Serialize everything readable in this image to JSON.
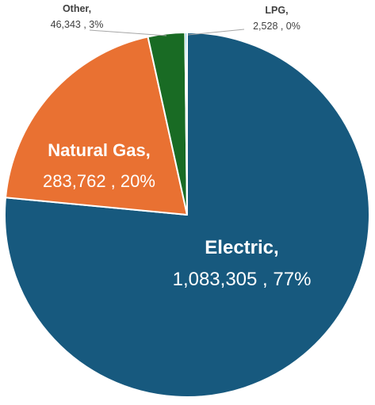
{
  "chart_data": {
    "type": "pie",
    "title": "",
    "slices": [
      {
        "name": "Electric",
        "value": 1083305,
        "value_text": "1,083,305",
        "percent_text": "77%",
        "color": "#17597e"
      },
      {
        "name": "Natural Gas",
        "value": 283762,
        "value_text": "283,762",
        "percent_text": "20%",
        "color": "#e97132"
      },
      {
        "name": "Other",
        "value": 46343,
        "value_text": "46,343",
        "percent_text": "3%",
        "color": "#196b24"
      },
      {
        "name": "LPG",
        "value": 2528,
        "value_text": "2,528",
        "percent_text": "0%",
        "color": "#0f9ed5"
      }
    ],
    "legend": "none",
    "start_angle_deg": 0,
    "direction": "clockwise"
  },
  "labels": {
    "electric_name": "Electric,",
    "electric_value": "1,083,305 , 77%",
    "natural_gas_name": "Natural Gas,",
    "natural_gas_value": "283,762 , 20%",
    "other_name": "Other,",
    "other_value": "46,343 , 3%",
    "lpg_name": "LPG,",
    "lpg_value": "2,528 , 0%"
  }
}
